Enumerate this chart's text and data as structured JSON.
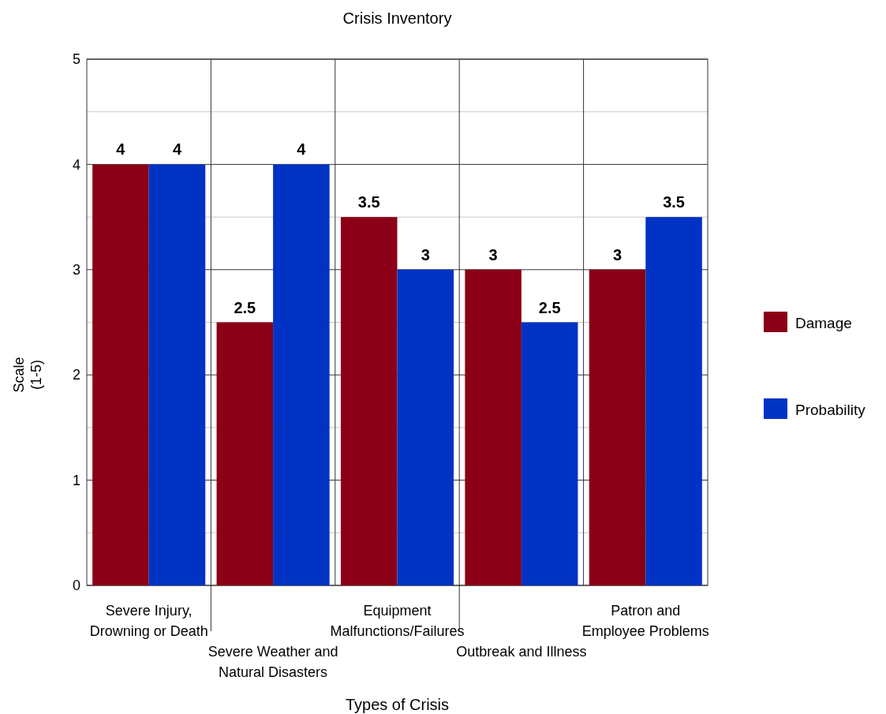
{
  "chart_data": {
    "type": "bar",
    "title": "Crisis Inventory",
    "xlabel": "Types of Crisis",
    "ylabel": "Scale\n(1-5)",
    "categories": [
      "Severe Injury,\nDrowning or Death",
      "Severe Weather and\nNatural Disasters",
      "Equipment\nMalfunctions/Failures",
      "Outbreak and Illness",
      "Patron and\nEmployee Problems"
    ],
    "series": [
      {
        "name": "Damage",
        "color": "#8b0016",
        "values": [
          4,
          2.5,
          3.5,
          3,
          3
        ]
      },
      {
        "name": "Probability",
        "color": "#0033c4",
        "values": [
          4,
          4,
          3,
          2.5,
          3.5
        ]
      }
    ],
    "ylim": [
      0,
      5
    ],
    "yticks": [
      0,
      {
        "value": 0.5,
        "label": null
      },
      1,
      {
        "value": 1.5,
        "label": null
      },
      2,
      {
        "value": 2.5,
        "label": null
      },
      3,
      {
        "value": 3.5,
        "label": null
      },
      4,
      {
        "value": 4.5,
        "label": null
      },
      5
    ],
    "grid": true,
    "legend": "right",
    "data_labels": true
  }
}
